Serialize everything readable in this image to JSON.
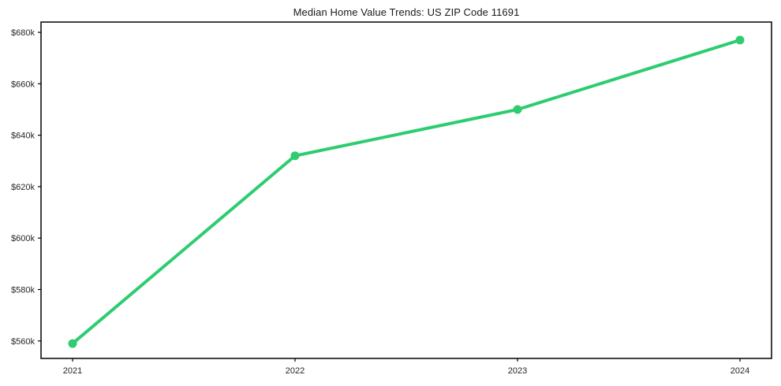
{
  "chart_data": {
    "type": "line",
    "title": "Median Home Value Trends: US ZIP Code 11691",
    "categories": [
      "2021",
      "2022",
      "2023",
      "2024"
    ],
    "series": [
      {
        "name": "Median Home Value",
        "values": [
          559000,
          632000,
          650000,
          677000
        ],
        "color": "#2ecc71"
      }
    ],
    "xlabel": "",
    "ylabel": "",
    "ylim": [
      553200,
      684000
    ],
    "yticks": [
      {
        "value": 560000,
        "label": "$560k"
      },
      {
        "value": 580000,
        "label": "$580k"
      },
      {
        "value": 600000,
        "label": "$600k"
      },
      {
        "value": 620000,
        "label": "$620k"
      },
      {
        "value": 640000,
        "label": "$640k"
      },
      {
        "value": 660000,
        "label": "$660k"
      },
      {
        "value": 680000,
        "label": "$680k"
      }
    ],
    "grid": false,
    "legend_position": "none",
    "colors": {
      "line": "#2ecc71",
      "marker": "#2ecc71",
      "axis": "#000000",
      "text": "#262626",
      "background": "#ffffff"
    }
  }
}
